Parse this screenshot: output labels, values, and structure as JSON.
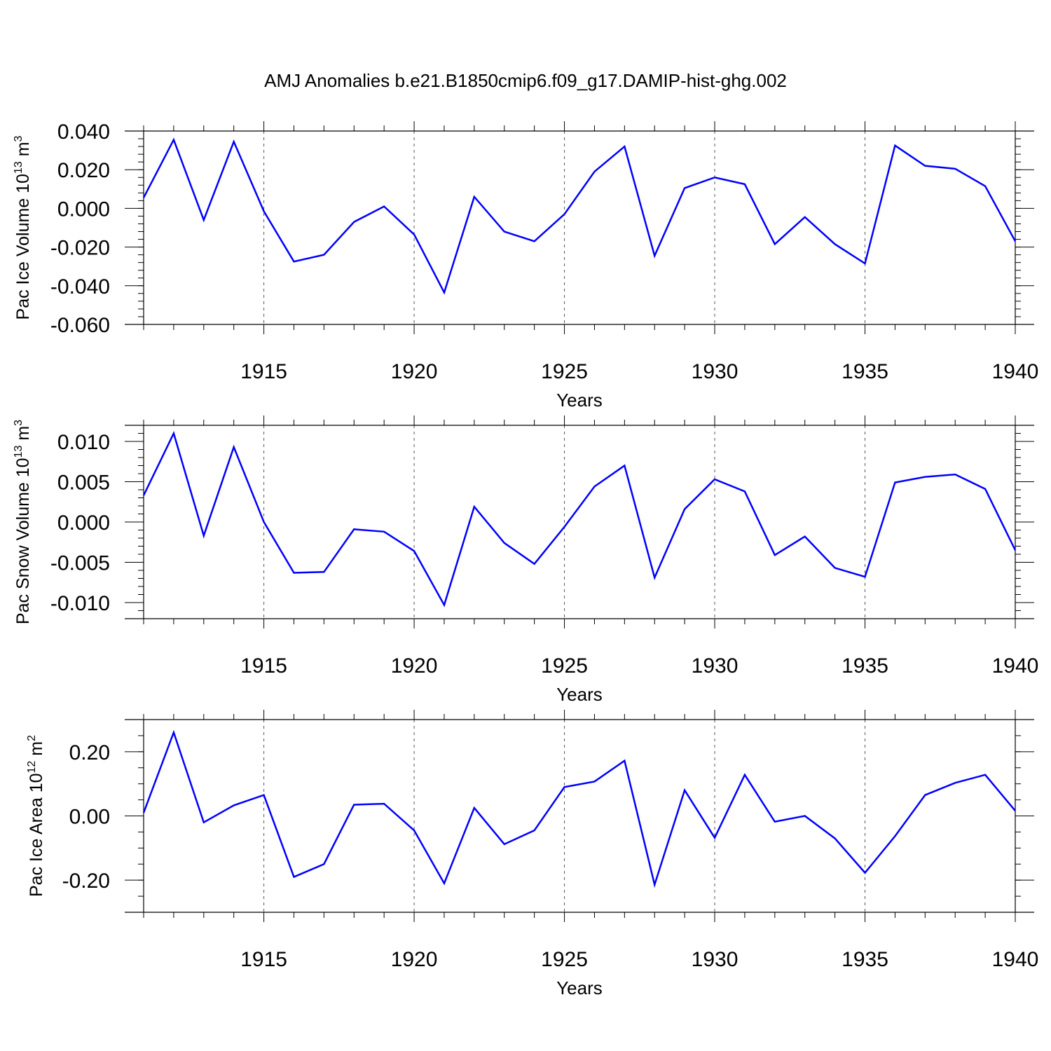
{
  "title": "AMJ Anomalies b.e21.B1850cmip6.f09_g17.DAMIP-hist-ghg.002",
  "chart_data": [
    {
      "type": "line",
      "xlabel": "Years",
      "ylabel_parts": {
        "text": "Pac Ice Volume 10",
        "exp": "13",
        "unit": " m",
        "unit_exp": "3"
      },
      "xlim": [
        1911,
        1940
      ],
      "ylim": [
        -0.06,
        0.04
      ],
      "x_ticks": [
        1915,
        1920,
        1925,
        1930,
        1935,
        1940
      ],
      "y_ticks": [
        -0.06,
        -0.04,
        -0.02,
        0.0,
        0.02,
        0.04
      ],
      "y_tick_labels": [
        "-0.060",
        "-0.040",
        "-0.020",
        "0.000",
        "0.020",
        "0.040"
      ],
      "y_minor_step": 0.004,
      "grid": "vertical dashed at major x ticks",
      "series_color": "#0000ff",
      "x": [
        1911,
        1912,
        1913,
        1914,
        1915,
        1916,
        1917,
        1918,
        1919,
        1920,
        1921,
        1922,
        1923,
        1924,
        1925,
        1926,
        1927,
        1928,
        1929,
        1930,
        1931,
        1932,
        1933,
        1934,
        1935,
        1936,
        1937,
        1938,
        1939,
        1940
      ],
      "values": [
        0.0055,
        0.0355,
        -0.006,
        0.0345,
        -0.0015,
        -0.0275,
        -0.024,
        -0.007,
        0.001,
        -0.0135,
        -0.0435,
        0.006,
        -0.012,
        -0.017,
        -0.003,
        0.019,
        0.032,
        -0.0245,
        0.0105,
        0.016,
        0.0125,
        -0.0185,
        -0.0045,
        -0.0185,
        -0.0285,
        0.0325,
        0.022,
        0.0205,
        0.0115,
        -0.017
      ]
    },
    {
      "type": "line",
      "xlabel": "Years",
      "ylabel_parts": {
        "text": "Pac Snow Volume 10",
        "exp": "13",
        "unit": " m",
        "unit_exp": "3"
      },
      "xlim": [
        1911,
        1940
      ],
      "ylim": [
        -0.012,
        0.012
      ],
      "x_ticks": [
        1915,
        1920,
        1925,
        1930,
        1935,
        1940
      ],
      "y_ticks": [
        -0.01,
        -0.005,
        0.0,
        0.005,
        0.01
      ],
      "y_tick_labels": [
        "-0.010",
        "-0.005",
        "0.000",
        "0.005",
        "0.010"
      ],
      "y_minor_step": 0.001,
      "grid": "vertical dashed at major x ticks",
      "series_color": "#0000ff",
      "x": [
        1911,
        1912,
        1913,
        1914,
        1915,
        1916,
        1917,
        1918,
        1919,
        1920,
        1921,
        1922,
        1923,
        1924,
        1925,
        1926,
        1927,
        1928,
        1929,
        1930,
        1931,
        1932,
        1933,
        1934,
        1935,
        1936,
        1937,
        1938,
        1939,
        1940
      ],
      "values": [
        0.0033,
        0.011,
        -0.0017,
        0.0093,
        0.0,
        -0.0063,
        -0.0062,
        -0.0009,
        -0.0012,
        -0.0036,
        -0.0103,
        0.0019,
        -0.0026,
        -0.0052,
        -0.0006,
        0.0044,
        0.007,
        -0.0069,
        0.0016,
        0.0053,
        0.0038,
        -0.0041,
        -0.0018,
        -0.0057,
        -0.0068,
        0.0049,
        0.0056,
        0.0059,
        0.0041,
        -0.0035
      ]
    },
    {
      "type": "line",
      "xlabel": "Years",
      "ylabel_parts": {
        "text": "Pac Ice Area 10",
        "exp": "12",
        "unit": " m",
        "unit_exp": "2"
      },
      "xlim": [
        1911,
        1940
      ],
      "ylim": [
        -0.3,
        0.3
      ],
      "x_ticks": [
        1915,
        1920,
        1925,
        1930,
        1935,
        1940
      ],
      "y_ticks": [
        -0.2,
        0.0,
        0.2
      ],
      "y_tick_labels": [
        "-0.20",
        "0.00",
        "0.20"
      ],
      "y_minor_step": 0.05,
      "grid": "vertical dashed at major x ticks",
      "series_color": "#0000ff",
      "x": [
        1911,
        1912,
        1913,
        1914,
        1915,
        1916,
        1917,
        1918,
        1919,
        1920,
        1921,
        1922,
        1923,
        1924,
        1925,
        1926,
        1927,
        1928,
        1929,
        1930,
        1931,
        1932,
        1933,
        1934,
        1935,
        1936,
        1937,
        1938,
        1939,
        1940
      ],
      "values": [
        0.01,
        0.26,
        -0.02,
        0.033,
        0.065,
        -0.19,
        -0.15,
        0.035,
        0.038,
        -0.045,
        -0.21,
        0.025,
        -0.088,
        -0.045,
        0.09,
        0.107,
        0.172,
        -0.214,
        0.08,
        -0.068,
        0.128,
        -0.018,
        0.0,
        -0.07,
        -0.177,
        -0.063,
        0.065,
        0.103,
        0.128,
        0.016
      ]
    }
  ]
}
